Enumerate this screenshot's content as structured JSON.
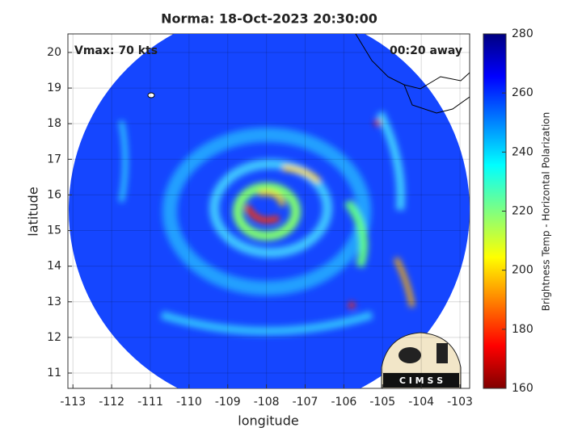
{
  "chart_data": {
    "type": "image",
    "title": "Norma: 18-Oct-2023 20:30:00",
    "xlabel": "longitude",
    "ylabel": "latitude",
    "xlim": [
      -113.13,
      -102.75
    ],
    "ylim": [
      10.57,
      20.52
    ],
    "xticks": [
      -113,
      -112,
      -111,
      -110,
      -109,
      -108,
      -107,
      -106,
      -105,
      -104,
      -103
    ],
    "yticks": [
      11,
      12,
      13,
      14,
      15,
      16,
      17,
      18,
      19,
      20
    ],
    "grid": true,
    "annotations": [
      "Vmax: 70 kts",
      "00:20 away"
    ],
    "colorbar": {
      "label": "Brightness Temp - Horizontal Polarization",
      "lim": [
        160,
        280
      ],
      "ticks": [
        160,
        180,
        200,
        220,
        240,
        260,
        280
      ],
      "colormap": "jet"
    },
    "logo": "C I M S S"
  }
}
